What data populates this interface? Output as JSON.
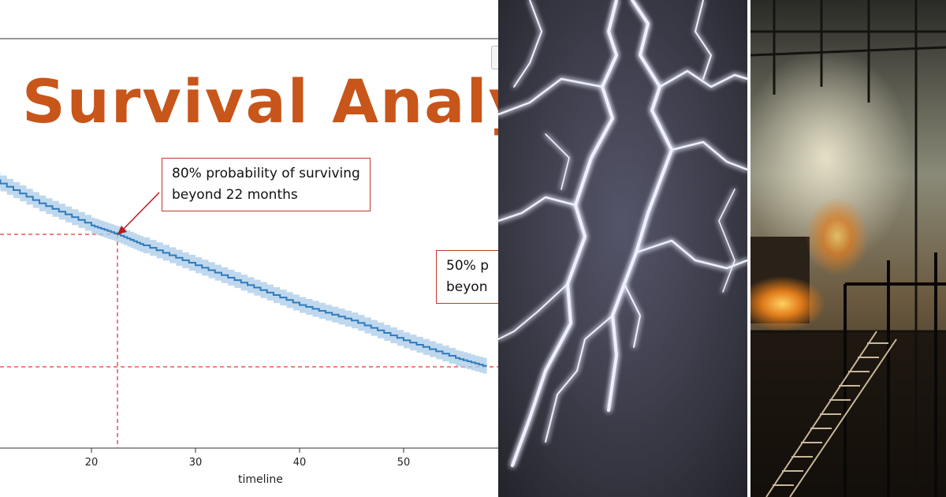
{
  "left_panel": {
    "title": "Survival Analy",
    "annotation_1": {
      "line1": "80% probability of surviving",
      "line2": "beyond 22 months"
    },
    "annotation_2": {
      "line1": "50% p",
      "line2": "beyon"
    },
    "colors": {
      "title": "#c8551a",
      "curve": "#2f7bbf",
      "band": "#a9cbe8",
      "guide": "#e53935",
      "annotation_border": "#c0392b"
    }
  },
  "chart_data": {
    "type": "line",
    "xlabel": "timeline",
    "xticks": [
      "20",
      "30",
      "40",
      "50"
    ],
    "series": [
      {
        "x": [
          10,
          15,
          20,
          22.5,
          25,
          30,
          35,
          40,
          45,
          50,
          55,
          58
        ],
        "y": [
          0.93,
          0.87,
          0.82,
          0.8,
          0.775,
          0.73,
          0.685,
          0.64,
          0.605,
          0.56,
          0.52,
          0.5
        ]
      }
    ],
    "guides": [
      {
        "type": "horizontal",
        "y": 0.8
      },
      {
        "type": "horizontal",
        "y": 0.5
      },
      {
        "type": "vertical",
        "x": 22.5
      }
    ]
  },
  "middle_panel": {
    "subject": "lightning bolts on dark background"
  },
  "right_panel": {
    "subject": "industrial steel plant interior with glowing furnace and staircase"
  }
}
